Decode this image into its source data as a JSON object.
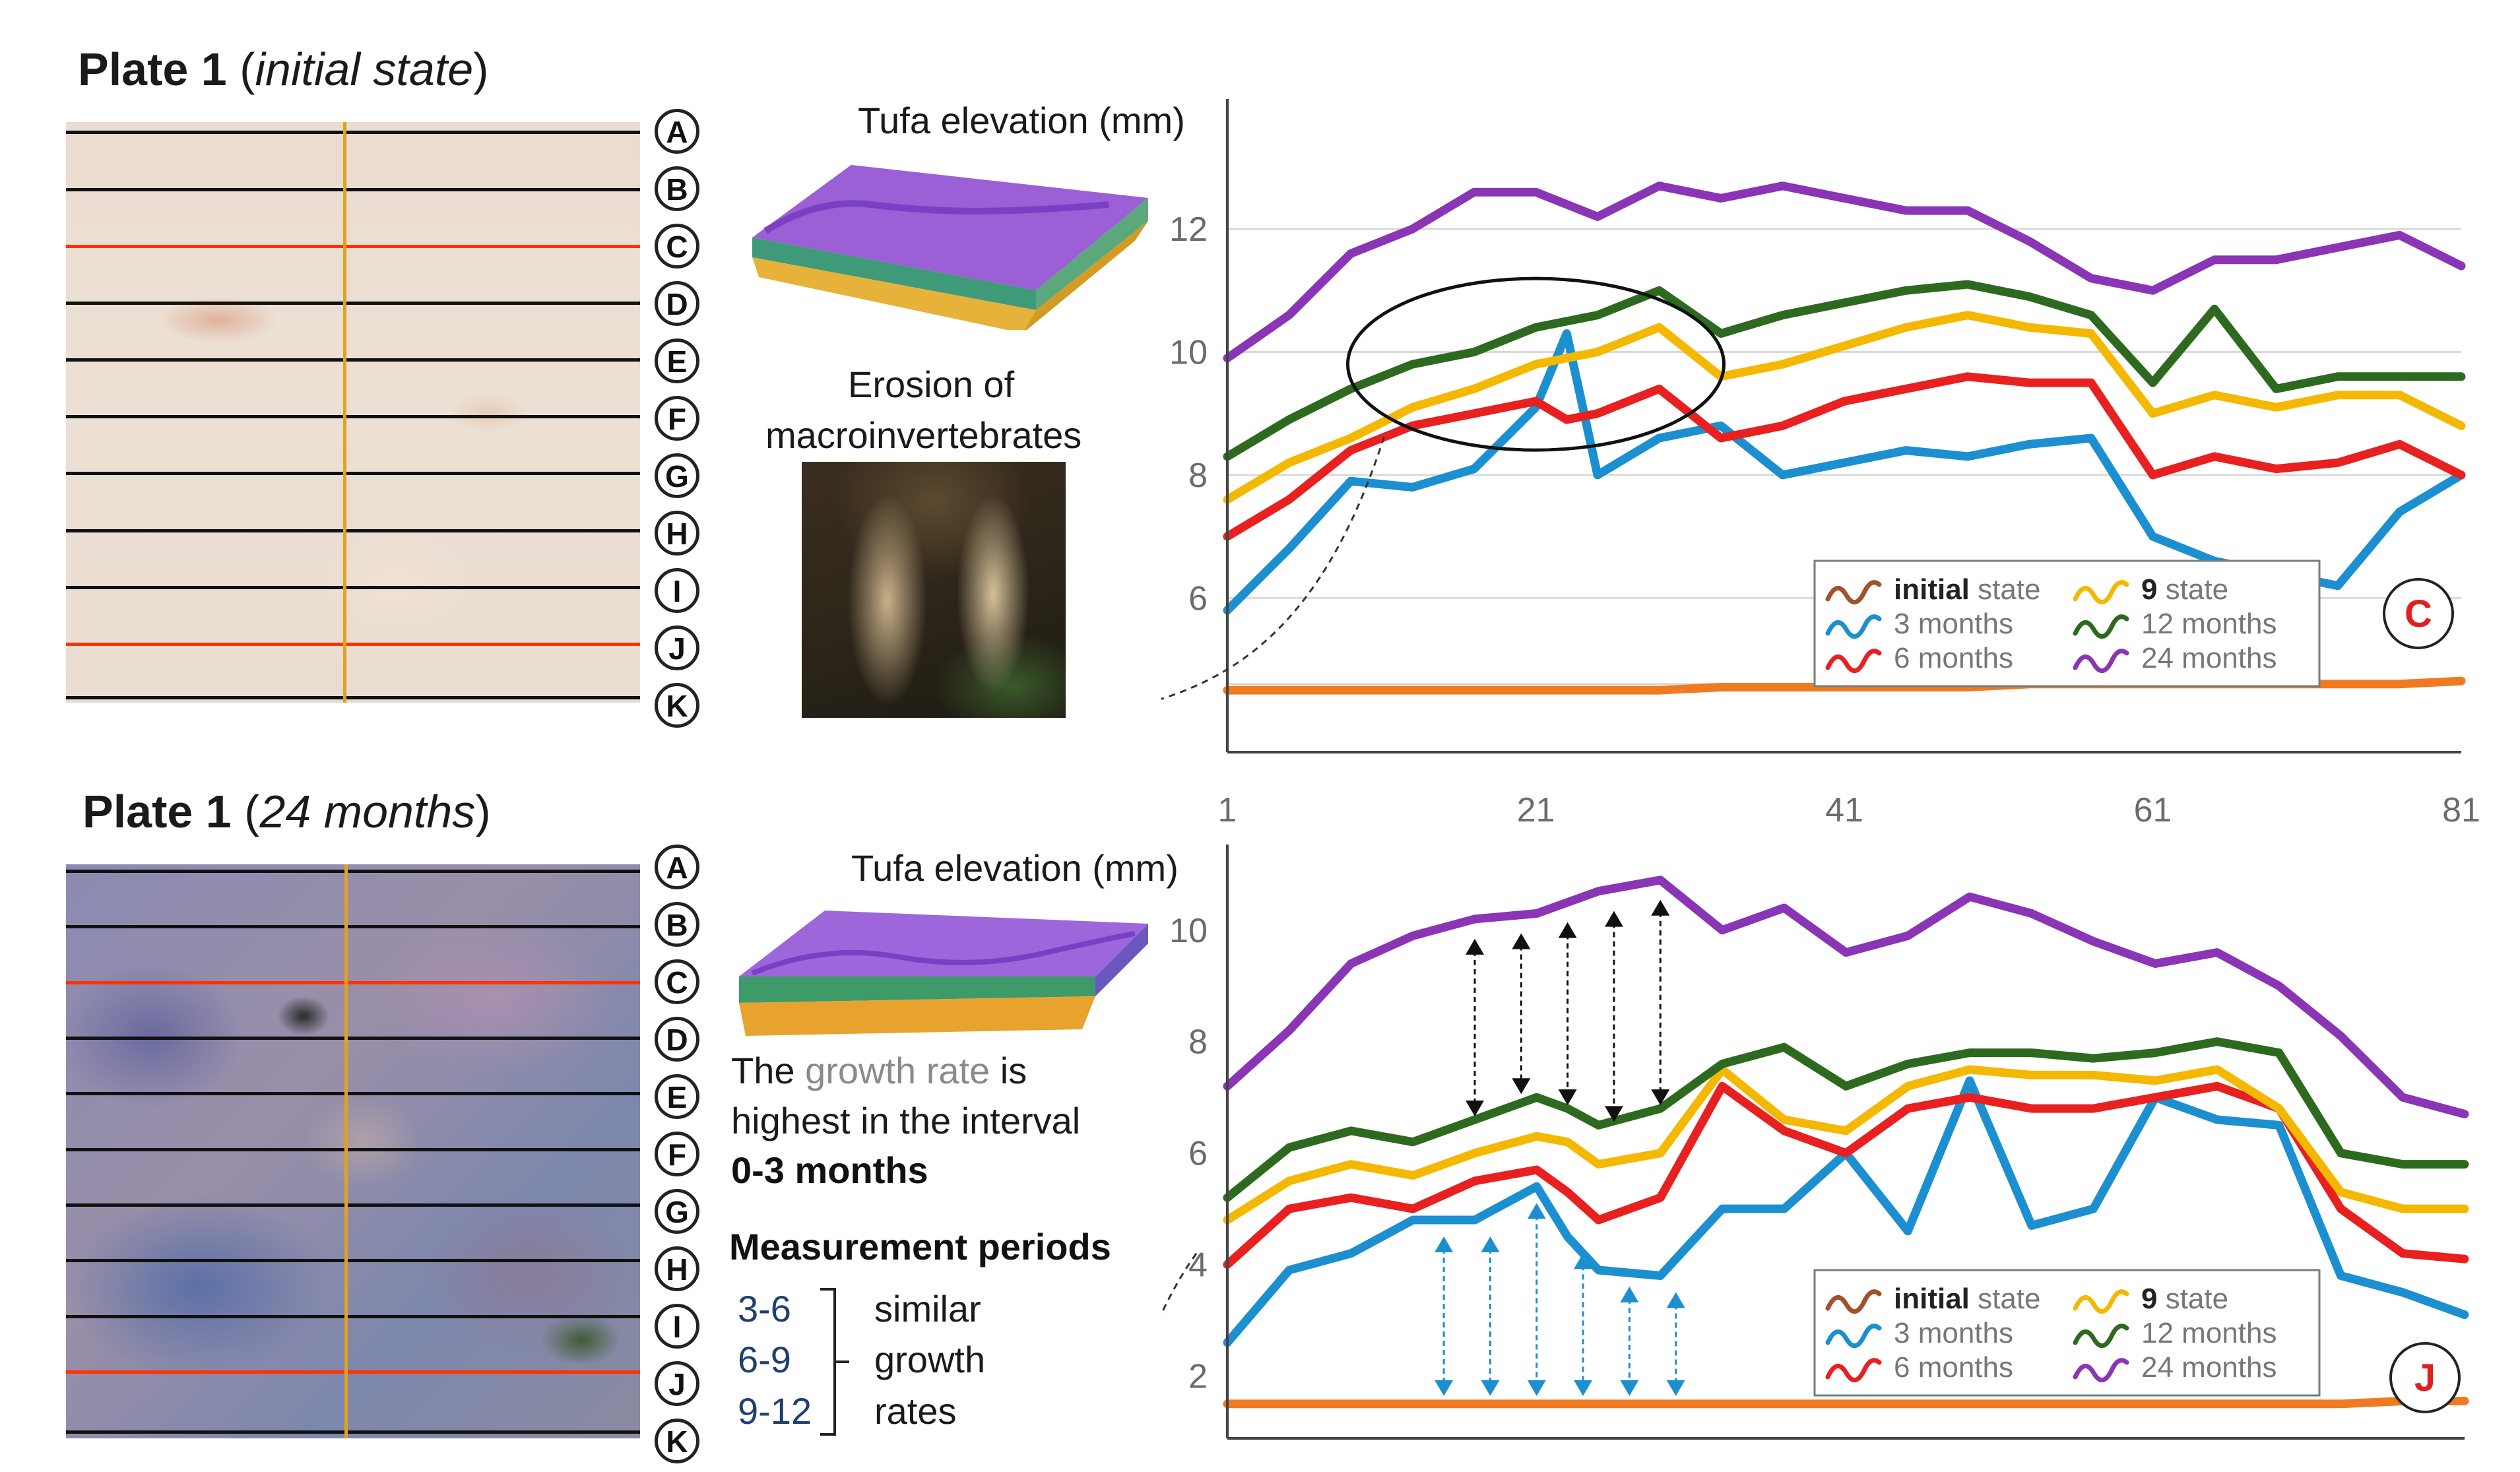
{
  "panels": {
    "top": {
      "title_bold": "Plate 1",
      "title_italic": "initial state",
      "row_letters": [
        "A",
        "B",
        "C",
        "D",
        "E",
        "F",
        "G",
        "H",
        "I",
        "J",
        "K"
      ],
      "elevation_label": "Tufa elevation (mm)",
      "erosion_label_1": "Erosion of",
      "erosion_label_2": "macroinvertebrates",
      "profile_label": "C"
    },
    "bottom": {
      "title_bold": "Plate 1",
      "title_italic": "24 months",
      "row_letters": [
        "A",
        "B",
        "C",
        "D",
        "E",
        "F",
        "G",
        "H",
        "I",
        "J",
        "K"
      ],
      "elevation_label": "Tufa elevation (mm)",
      "growth_note": {
        "part1": "The",
        "highlight": "growth rate",
        "part2": "is highest in the interval",
        "interval": "0-3 months"
      },
      "measurement": {
        "title": "Measurement periods",
        "periods": [
          "3-6",
          "6-9",
          "9-12"
        ],
        "result_lines": [
          "similar",
          "growth",
          "rates"
        ]
      },
      "profile_label": "J"
    }
  },
  "legend": {
    "items": [
      {
        "bold": "initial",
        "rest": " state",
        "color": "#a0522d"
      },
      {
        "bold": "9",
        "rest": " state",
        "color": "#f5b800"
      },
      {
        "bold": "",
        "rest": "3 months",
        "color": "#1b8fd0"
      },
      {
        "bold": "",
        "rest": "12 months",
        "color": "#2d6a1f"
      },
      {
        "bold": "",
        "rest": "6 months",
        "color": "#e82020"
      },
      {
        "bold": "",
        "rest": "24 months",
        "color": "#8a35b5"
      }
    ]
  },
  "colors": {
    "initial_state_line": "#f07a22",
    "months_3": "#1b8fd0",
    "months_6": "#e82020",
    "state_9": "#f5b800",
    "months_12": "#2d6a1f",
    "months_24": "#8a35b5",
    "profile_red_line": "#ff3300",
    "vertical_line": "#e0a21e",
    "label_red": "#e02020"
  },
  "chart_data": [
    {
      "type": "line",
      "profile": "C",
      "title": "Tufa elevation (mm)",
      "xlabel": "",
      "ylabel": "Tufa elevation (mm)",
      "x_ticks": [
        1,
        21,
        41,
        61,
        81
      ],
      "y_ticks": [
        6,
        8,
        10,
        12
      ],
      "xlim": [
        1,
        81
      ],
      "ylim": [
        3.6,
        13.9
      ],
      "grid": "horizontal",
      "legend_position": "bottom-right",
      "x": [
        1,
        5,
        9,
        13,
        17,
        21,
        23,
        25,
        29,
        33,
        37,
        41,
        45,
        49,
        53,
        57,
        61,
        65,
        69,
        73,
        77,
        81
      ],
      "series": [
        {
          "name": "initial state",
          "color": "#f07a22",
          "values": [
            4.5,
            4.5,
            4.5,
            4.5,
            4.5,
            4.5,
            4.5,
            4.5,
            4.5,
            4.55,
            4.55,
            4.55,
            4.55,
            4.55,
            4.6,
            4.6,
            4.6,
            4.6,
            4.6,
            4.6,
            4.6,
            4.65
          ]
        },
        {
          "name": "3 months",
          "color": "#1b8fd0",
          "values": [
            5.8,
            6.8,
            7.9,
            7.8,
            8.1,
            9.1,
            10.3,
            8.0,
            8.6,
            8.8,
            8.0,
            8.2,
            8.4,
            8.3,
            8.5,
            8.6,
            7.0,
            6.6,
            6.4,
            6.2,
            7.4,
            8.0
          ]
        },
        {
          "name": "6 months",
          "color": "#e82020",
          "values": [
            7.0,
            7.6,
            8.4,
            8.8,
            9.0,
            9.2,
            8.9,
            9.0,
            9.4,
            8.6,
            8.8,
            9.2,
            9.4,
            9.6,
            9.5,
            9.5,
            8.0,
            8.3,
            8.1,
            8.2,
            8.5,
            8.0
          ]
        },
        {
          "name": "9 state",
          "color": "#f5b800",
          "values": [
            7.6,
            8.2,
            8.6,
            9.1,
            9.4,
            9.8,
            9.9,
            10.0,
            10.4,
            9.6,
            9.8,
            10.1,
            10.4,
            10.6,
            10.4,
            10.3,
            9.0,
            9.3,
            9.1,
            9.3,
            9.3,
            8.8
          ]
        },
        {
          "name": "12 months",
          "color": "#2d6a1f",
          "values": [
            8.3,
            8.9,
            9.4,
            9.8,
            10.0,
            10.4,
            10.5,
            10.6,
            11.0,
            10.3,
            10.6,
            10.8,
            11.0,
            11.1,
            10.9,
            10.6,
            9.5,
            10.7,
            9.4,
            9.6,
            9.6,
            9.6
          ]
        },
        {
          "name": "24 months",
          "color": "#8a35b5",
          "values": [
            9.9,
            10.6,
            11.6,
            12.0,
            12.6,
            12.6,
            12.4,
            12.2,
            12.7,
            12.5,
            12.7,
            12.5,
            12.3,
            12.3,
            11.8,
            11.2,
            11.0,
            11.5,
            11.5,
            11.7,
            11.9,
            11.4
          ]
        }
      ]
    },
    {
      "type": "line",
      "profile": "J",
      "title": "Tufa elevation (mm)",
      "xlabel": "",
      "ylabel": "Tufa elevation (mm)",
      "x_ticks": [],
      "y_ticks": [
        2,
        4,
        6,
        8,
        10
      ],
      "xlim": [
        1,
        81
      ],
      "ylim": [
        1.0,
        11.3
      ],
      "grid": "none",
      "legend_position": "bottom-right",
      "x": [
        1,
        5,
        9,
        13,
        17,
        21,
        23,
        25,
        29,
        33,
        37,
        41,
        45,
        49,
        53,
        57,
        61,
        65,
        69,
        73,
        77,
        81
      ],
      "series": [
        {
          "name": "initial state",
          "color": "#f07a22",
          "values": [
            1.5,
            1.5,
            1.5,
            1.5,
            1.5,
            1.5,
            1.5,
            1.5,
            1.5,
            1.5,
            1.5,
            1.5,
            1.5,
            1.5,
            1.5,
            1.5,
            1.5,
            1.5,
            1.5,
            1.5,
            1.55,
            1.55
          ]
        },
        {
          "name": "3 months",
          "color": "#1b8fd0",
          "values": [
            2.6,
            3.9,
            4.2,
            4.8,
            4.8,
            5.4,
            4.5,
            3.9,
            3.8,
            5.0,
            5.0,
            6.0,
            4.6,
            7.3,
            4.7,
            5.0,
            7.0,
            6.6,
            6.5,
            3.8,
            3.5,
            3.1
          ]
        },
        {
          "name": "6 months",
          "color": "#e82020",
          "values": [
            4.0,
            5.0,
            5.2,
            5.0,
            5.5,
            5.7,
            5.3,
            4.8,
            5.2,
            7.2,
            6.4,
            6.0,
            6.8,
            7.0,
            6.8,
            6.8,
            7.0,
            7.2,
            6.8,
            5.0,
            4.2,
            4.1
          ]
        },
        {
          "name": "9 state",
          "color": "#f5b800",
          "values": [
            4.8,
            5.5,
            5.8,
            5.6,
            6.0,
            6.3,
            6.2,
            5.8,
            6.0,
            7.5,
            6.6,
            6.4,
            7.2,
            7.5,
            7.4,
            7.4,
            7.3,
            7.5,
            6.8,
            5.3,
            5.0,
            5.0
          ]
        },
        {
          "name": "12 months",
          "color": "#2d6a1f",
          "values": [
            5.2,
            6.1,
            6.4,
            6.2,
            6.6,
            7.0,
            6.8,
            6.5,
            6.8,
            7.6,
            7.9,
            7.2,
            7.6,
            7.8,
            7.8,
            7.7,
            7.8,
            8.0,
            7.8,
            6.0,
            5.8,
            5.8
          ]
        },
        {
          "name": "24 months",
          "color": "#8a35b5",
          "values": [
            7.2,
            8.2,
            9.4,
            9.9,
            10.2,
            10.3,
            10.5,
            10.7,
            10.9,
            10.0,
            10.4,
            9.6,
            9.9,
            10.6,
            10.3,
            9.8,
            9.4,
            9.6,
            9.0,
            8.1,
            7.0,
            6.7
          ]
        }
      ]
    }
  ]
}
